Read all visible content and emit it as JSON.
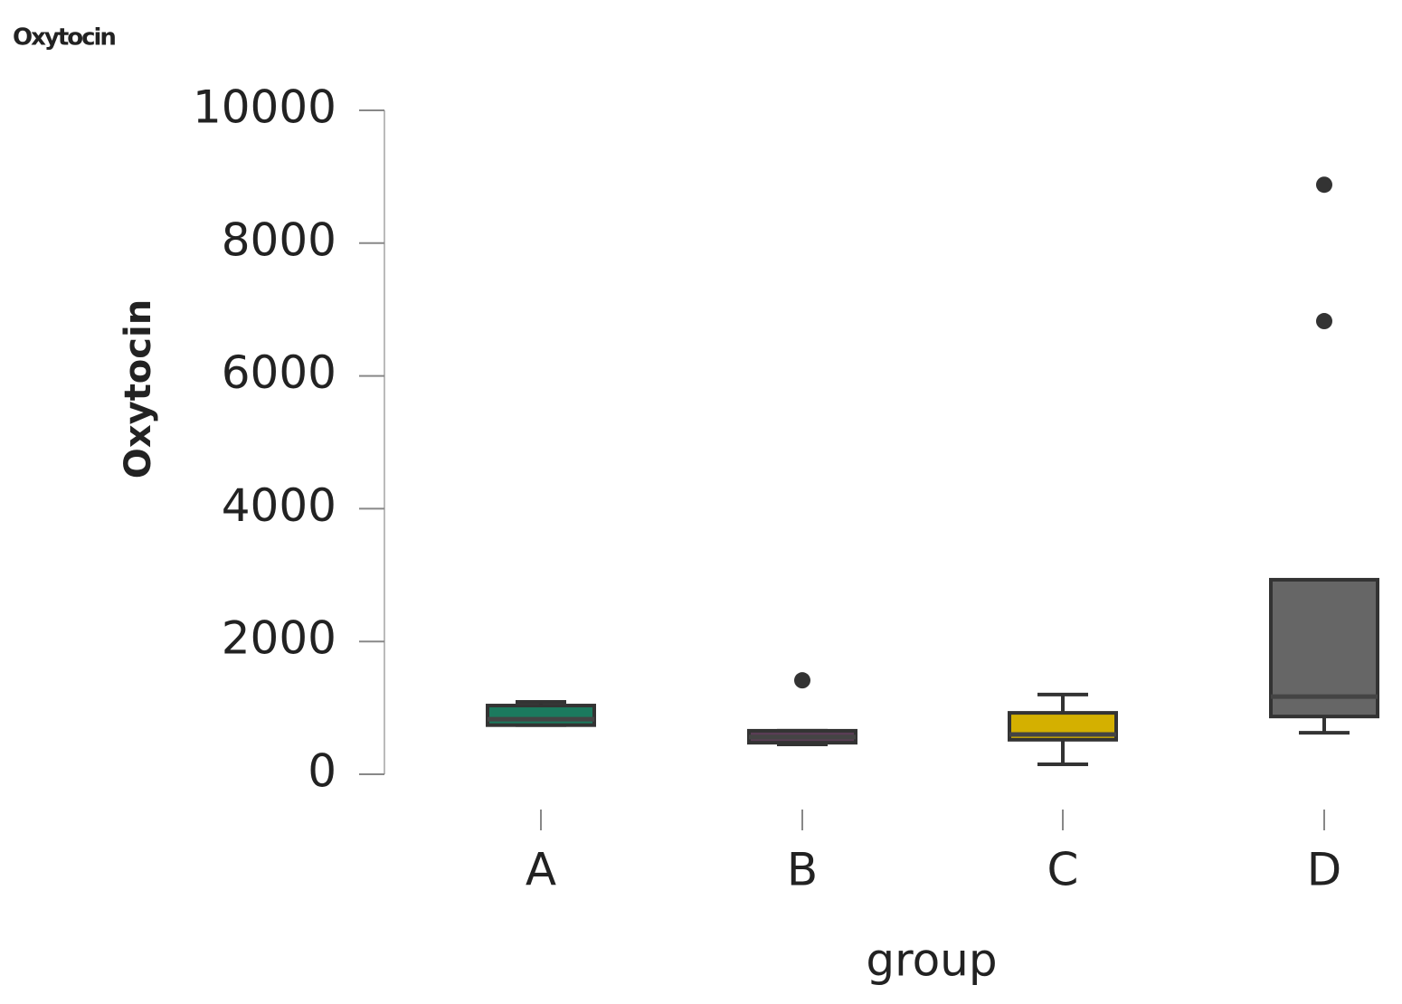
{
  "chart_data": {
    "type": "box",
    "title": "Oxytocin",
    "y_label": "Oxytocin",
    "x_label": "group",
    "categories": [
      "A",
      "B",
      "C",
      "D"
    ],
    "boxes": [
      {
        "color": "#1b7a5e",
        "min": 740,
        "q1": 740,
        "median": 830,
        "q3": 1035,
        "max": 1090,
        "outliers": []
      },
      {
        "color": "#5a3d55",
        "min": 450,
        "q1": 475,
        "median": 560,
        "q3": 655,
        "max": 655,
        "outliers": [
          1415
        ]
      },
      {
        "color": "#d4b000",
        "min": 150,
        "q1": 520,
        "median": 600,
        "q3": 925,
        "max": 1200,
        "outliers": []
      },
      {
        "color": "#666666",
        "min": 625,
        "q1": 870,
        "median": 1170,
        "q3": 2930,
        "max": 2930,
        "outliers": [
          6825,
          8880
        ]
      }
    ],
    "ylim": [
      0,
      10000
    ],
    "yticks": [
      0,
      2000,
      4000,
      6000,
      8000,
      10000
    ]
  }
}
